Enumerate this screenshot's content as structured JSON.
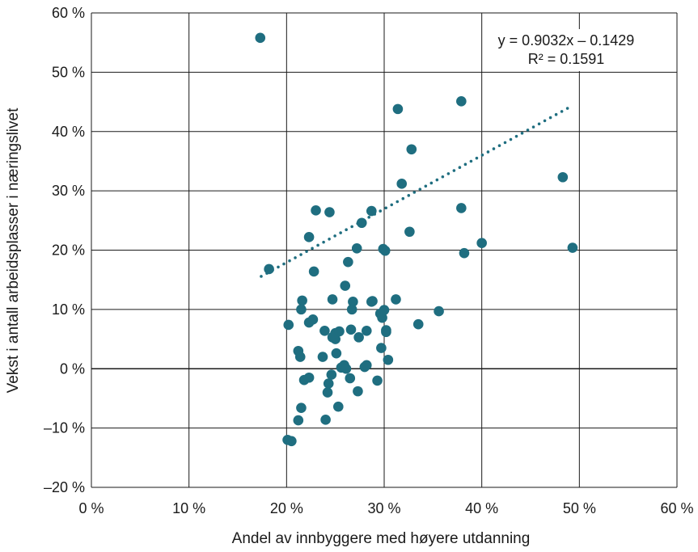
{
  "chart_data": {
    "type": "scatter",
    "xlabel": "Andel av innbyggere med høyere utdanning",
    "ylabel": "Vekst i antall arbeidsplasser i næringslivet",
    "xlim": [
      0,
      60
    ],
    "ylim": [
      -20,
      60
    ],
    "x_ticks": [
      0,
      10,
      20,
      30,
      40,
      50,
      60
    ],
    "y_ticks": [
      -20,
      -10,
      0,
      10,
      20,
      30,
      40,
      50,
      60
    ],
    "x_tick_labels": [
      "0 %",
      "10 %",
      "20 %",
      "30 %",
      "40 %",
      "50 %",
      "60 %"
    ],
    "y_tick_labels": [
      "–20 %",
      "–10 %",
      "0 %",
      "10 %",
      "20 %",
      "30 %",
      "40 %",
      "50 %",
      "60 %"
    ],
    "grid": true,
    "point_color": "#1f6e80",
    "trendline": {
      "style": "dotted",
      "color": "#1f6e80",
      "x_range": [
        17.4,
        49
      ],
      "slope": 0.9032,
      "intercept": -0.1429,
      "equation_label": "y = 0.9032x – 0.1429",
      "r2_label": "R² = 0.1591"
    },
    "points": [
      [
        17.3,
        55.8
      ],
      [
        18.2,
        16.8
      ],
      [
        20.1,
        -12.0
      ],
      [
        20.5,
        -12.2
      ],
      [
        20.2,
        7.4
      ],
      [
        21.2,
        3.0
      ],
      [
        21.4,
        2.0
      ],
      [
        21.5,
        -6.6
      ],
      [
        21.2,
        -8.7
      ],
      [
        21.6,
        11.5
      ],
      [
        21.5,
        10.0
      ],
      [
        21.8,
        -1.9
      ],
      [
        22.3,
        -1.5
      ],
      [
        22.3,
        7.8
      ],
      [
        22.7,
        8.3
      ],
      [
        22.3,
        22.2
      ],
      [
        22.8,
        16.4
      ],
      [
        23.0,
        26.7
      ],
      [
        23.9,
        6.4
      ],
      [
        23.7,
        2.0
      ],
      [
        24.0,
        -8.6
      ],
      [
        24.2,
        -4.0
      ],
      [
        24.3,
        -2.5
      ],
      [
        24.4,
        26.4
      ],
      [
        24.6,
        -1.0
      ],
      [
        24.7,
        11.7
      ],
      [
        24.7,
        5.3
      ],
      [
        25.0,
        5.0
      ],
      [
        25.0,
        6.0
      ],
      [
        25.1,
        2.6
      ],
      [
        25.3,
        -6.4
      ],
      [
        25.4,
        6.3
      ],
      [
        25.6,
        0.2
      ],
      [
        25.9,
        0.6
      ],
      [
        26.0,
        14.0
      ],
      [
        26.1,
        0.0
      ],
      [
        26.3,
        18.0
      ],
      [
        26.5,
        -1.6
      ],
      [
        26.6,
        6.6
      ],
      [
        26.8,
        11.3
      ],
      [
        26.7,
        10.0
      ],
      [
        27.2,
        20.3
      ],
      [
        27.3,
        -3.8
      ],
      [
        27.4,
        5.3
      ],
      [
        27.7,
        24.6
      ],
      [
        28.0,
        0.3
      ],
      [
        28.2,
        0.6
      ],
      [
        28.2,
        6.4
      ],
      [
        28.7,
        11.3
      ],
      [
        28.7,
        26.6
      ],
      [
        28.8,
        11.4
      ],
      [
        29.3,
        -2.0
      ],
      [
        29.6,
        9.3
      ],
      [
        29.7,
        3.5
      ],
      [
        29.8,
        8.6
      ],
      [
        29.9,
        20.2
      ],
      [
        30.0,
        9.9
      ],
      [
        30.1,
        19.9
      ],
      [
        30.2,
        6.2
      ],
      [
        30.2,
        6.5
      ],
      [
        30.4,
        1.5
      ],
      [
        31.2,
        11.7
      ],
      [
        31.4,
        43.8
      ],
      [
        31.8,
        31.2
      ],
      [
        32.6,
        23.1
      ],
      [
        32.8,
        37.0
      ],
      [
        33.5,
        7.5
      ],
      [
        35.6,
        9.7
      ],
      [
        37.9,
        45.1
      ],
      [
        37.9,
        27.1
      ],
      [
        38.2,
        19.5
      ],
      [
        40.0,
        21.2
      ],
      [
        48.3,
        32.3
      ],
      [
        49.3,
        20.4
      ]
    ]
  }
}
